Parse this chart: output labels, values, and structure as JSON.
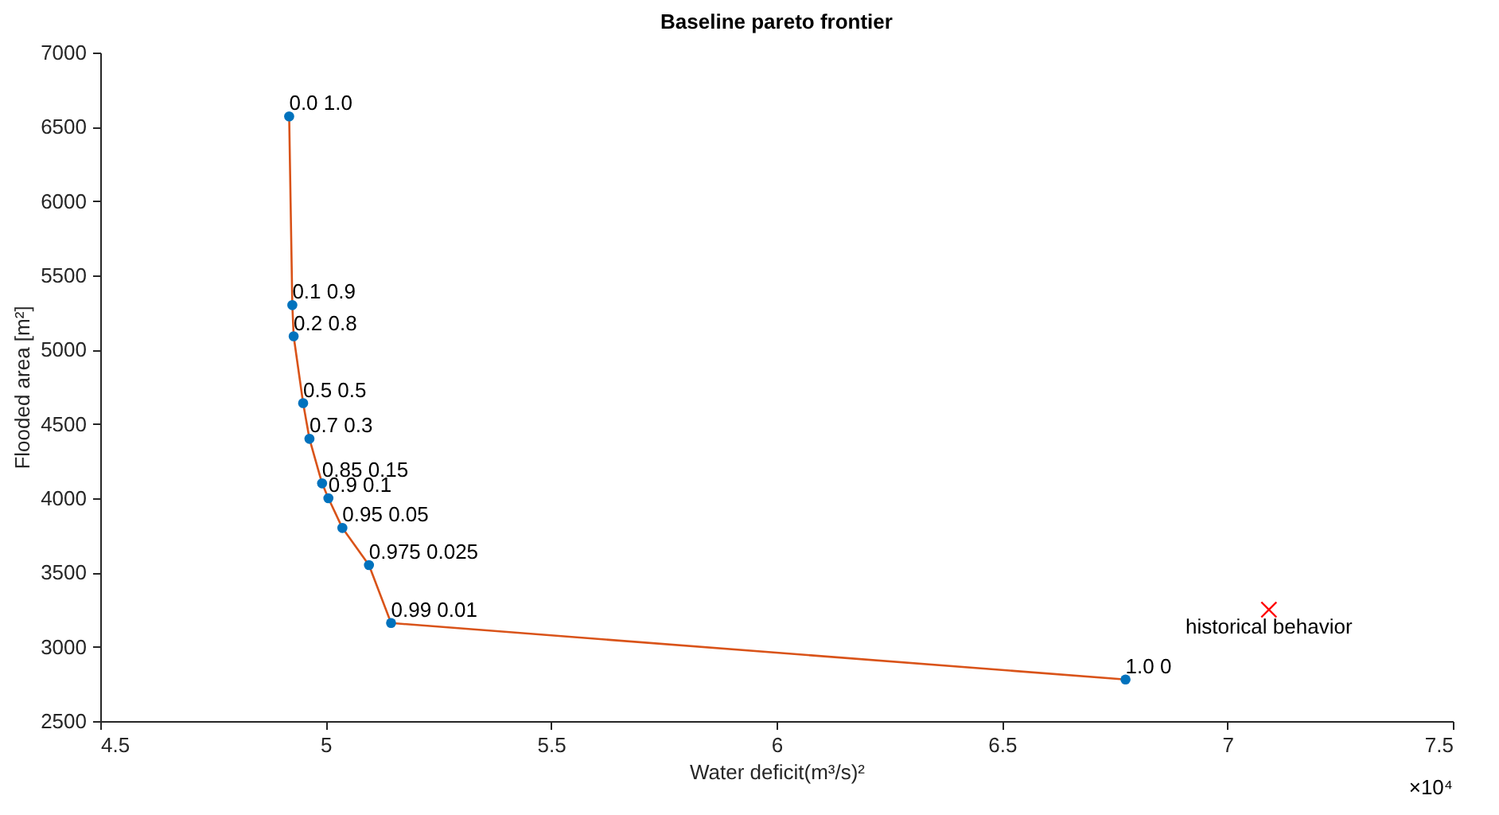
{
  "chart_data": {
    "type": "line",
    "title": "Baseline pareto frontier",
    "xlabel": "Water deficit(m³/s)²",
    "ylabel": "Flooded area [m²]",
    "xlim": [
      4.5,
      7.5
    ],
    "xticks": [
      4.5,
      5,
      5.5,
      6,
      6.5,
      7,
      7.5
    ],
    "ylim": [
      2500,
      7000
    ],
    "yticks": [
      2500,
      3000,
      3500,
      4000,
      4500,
      5000,
      5500,
      6000,
      6500,
      7000
    ],
    "grid": false,
    "series": [
      {
        "color": "#d95319",
        "marker": "none",
        "x": [
          4.919,
          4.926,
          4.929,
          4.95,
          4.964,
          4.992,
          5.006,
          5.037,
          5.096,
          5.145,
          6.774
        ],
        "values": [
          6570,
          5300,
          5090,
          4640,
          4400,
          4100,
          4000,
          3800,
          3550,
          3160,
          2780
        ]
      },
      {
        "type": "scatter",
        "color": "#0072bd",
        "marker": "circle",
        "x": [
          4.919,
          4.926,
          4.929,
          4.95,
          4.964,
          4.992,
          5.006,
          5.037,
          5.096,
          5.145,
          6.774
        ],
        "values": [
          6570,
          5300,
          5090,
          4640,
          4400,
          4100,
          4000,
          3800,
          3550,
          3160,
          2780
        ]
      },
      {
        "type": "scatter",
        "color": "#ff0000",
        "marker": "cross",
        "x": [
          7.092
        ],
        "values": [
          3250
        ]
      }
    ],
    "annotations": [
      {
        "text": "0.0 1.0",
        "x": 4.919,
        "y": 6570
      },
      {
        "text": "0.1 0.9",
        "x": 4.926,
        "y": 5300
      },
      {
        "text": "0.2 0.8",
        "x": 4.929,
        "y": 5090
      },
      {
        "text": "0.5 0.5",
        "x": 4.95,
        "y": 4640
      },
      {
        "text": "0.7 0.3",
        "x": 4.964,
        "y": 4400
      },
      {
        "text": "0.85 0.15",
        "x": 4.992,
        "y": 4100
      },
      {
        "text": "0.9 0.1",
        "x": 5.006,
        "y": 4000
      },
      {
        "text": "0.95 0.05",
        "x": 5.037,
        "y": 3800
      },
      {
        "text": "0.975 0.025",
        "x": 5.096,
        "y": 3550
      },
      {
        "text": "0.99 0.01",
        "x": 5.145,
        "y": 3160
      },
      {
        "text": "1.0 0",
        "x": 6.774,
        "y": 2780
      },
      {
        "text": "historical behavior",
        "x": 7.092,
        "y": 3250
      },
      "×10⁴"
    ]
  }
}
